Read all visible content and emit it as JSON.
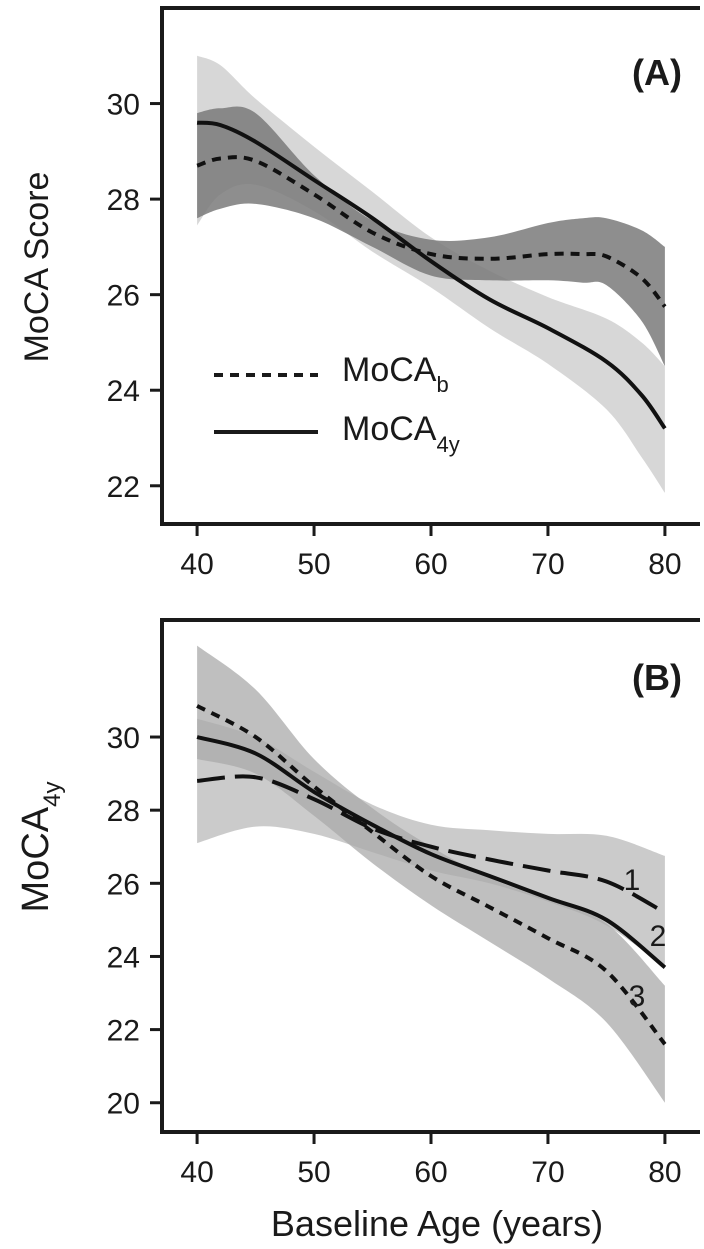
{
  "chart_data": [
    {
      "type": "line",
      "panel_label": "(A)",
      "xlabel": "",
      "ylabel": "MoCA Score",
      "xlim": [
        37,
        83
      ],
      "ylim": [
        21.2,
        32.0
      ],
      "xticks": [
        40,
        50,
        60,
        70,
        80
      ],
      "xtick_labels": [
        "40",
        "50",
        "60",
        "70",
        "80"
      ],
      "yticks": [
        22,
        24,
        26,
        28,
        30
      ],
      "ytick_labels": [
        "22",
        "24",
        "26",
        "28",
        "30"
      ],
      "legend": {
        "position": "bottom-left",
        "entries": [
          {
            "label": "MoCA",
            "sub": "b",
            "style": "dotted"
          },
          {
            "label": "MoCA",
            "sub": "4y",
            "style": "solid"
          }
        ]
      },
      "series": [
        {
          "key": "MoCA_b",
          "style": "dotted",
          "x": [
            40,
            42,
            45,
            50,
            55,
            60,
            65,
            70,
            73,
            75,
            78,
            80
          ],
          "values": [
            28.7,
            28.85,
            28.8,
            28.1,
            27.3,
            26.85,
            26.75,
            26.85,
            26.85,
            26.8,
            26.35,
            25.75
          ],
          "ci_lower": [
            27.6,
            27.8,
            27.9,
            27.6,
            27.0,
            26.4,
            26.3,
            26.3,
            26.25,
            26.2,
            25.45,
            24.5
          ],
          "ci_upper": [
            29.8,
            29.9,
            29.8,
            28.5,
            27.55,
            27.15,
            27.2,
            27.5,
            27.6,
            27.6,
            27.35,
            27.0
          ],
          "band_color": "#7a7a7a"
        },
        {
          "key": "MoCA_4y",
          "style": "solid",
          "x": [
            40,
            42,
            45,
            50,
            55,
            60,
            65,
            70,
            75,
            78,
            80
          ],
          "values": [
            29.6,
            29.55,
            29.2,
            28.4,
            27.6,
            26.7,
            25.9,
            25.3,
            24.6,
            23.9,
            23.2
          ],
          "ci_lower": [
            27.45,
            28.1,
            28.3,
            27.75,
            26.9,
            26.15,
            25.3,
            24.55,
            23.6,
            22.6,
            21.85
          ],
          "ci_upper": [
            31.0,
            30.8,
            30.1,
            29.1,
            28.15,
            27.2,
            26.5,
            25.95,
            25.5,
            25.0,
            24.5
          ],
          "band_color": "#c9c9c9"
        }
      ]
    },
    {
      "type": "line",
      "panel_label": "(B)",
      "xlabel": "Baseline Age (years)",
      "ylabel": "MoCA",
      "ylabel_sub": "4y",
      "xlim": [
        37,
        83
      ],
      "ylim": [
        19.2,
        33.2
      ],
      "xticks": [
        40,
        50,
        60,
        70,
        80
      ],
      "xtick_labels": [
        "40",
        "50",
        "60",
        "70",
        "80"
      ],
      "yticks": [
        20,
        22,
        24,
        26,
        28,
        30
      ],
      "ytick_labels": [
        "20",
        "22",
        "24",
        "26",
        "28",
        "30"
      ],
      "series": [
        {
          "name": "1",
          "style": "long-dash",
          "x": [
            40,
            45,
            50,
            55,
            60,
            65,
            70,
            75,
            80
          ],
          "values": [
            28.8,
            28.9,
            28.3,
            27.5,
            27.0,
            26.65,
            26.35,
            26.05,
            25.2
          ],
          "ci_lower": [
            27.1,
            27.55,
            27.35,
            26.85,
            26.35,
            26.0,
            25.5,
            24.85,
            23.7
          ],
          "ci_upper": [
            30.5,
            30.0,
            29.05,
            28.15,
            27.6,
            27.45,
            27.35,
            27.3,
            26.75
          ],
          "band_color": "#b9b9b9"
        },
        {
          "name": "2",
          "style": "solid",
          "x": [
            40,
            45,
            50,
            55,
            60,
            65,
            70,
            75,
            80
          ],
          "values": [
            30.0,
            29.55,
            28.5,
            27.6,
            26.8,
            26.2,
            25.6,
            25.0,
            23.7
          ]
        },
        {
          "name": "3",
          "style": "dotted",
          "x": [
            40,
            45,
            50,
            55,
            60,
            65,
            70,
            75,
            80
          ],
          "values": [
            30.85,
            30.0,
            28.65,
            27.4,
            26.2,
            25.35,
            24.5,
            23.6,
            21.6
          ],
          "ci_lower": [
            29.4,
            29.0,
            27.85,
            26.55,
            25.4,
            24.4,
            23.4,
            22.2,
            20.0
          ],
          "ci_upper": [
            32.5,
            31.3,
            29.4,
            28.05,
            27.0,
            26.15,
            25.55,
            24.9,
            23.2
          ],
          "band_color": "#a9a9a9"
        }
      ]
    }
  ]
}
